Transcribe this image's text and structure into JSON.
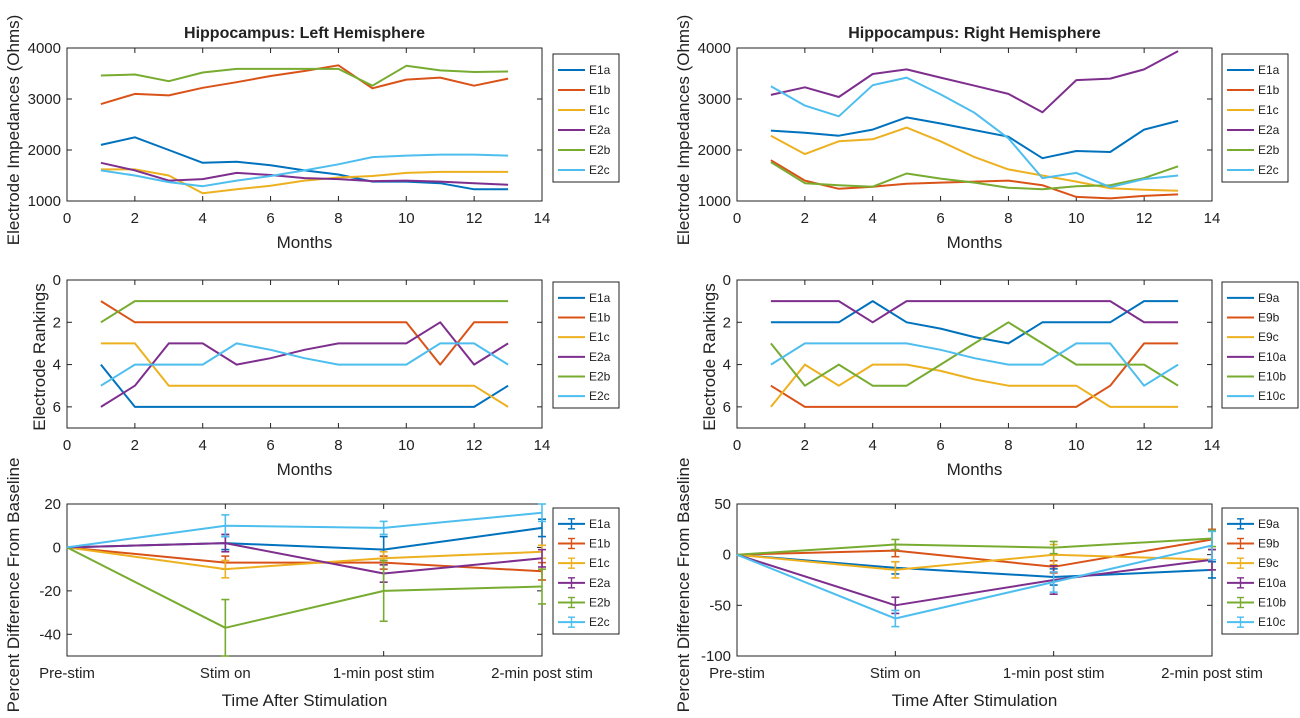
{
  "chart_data": [
    {
      "id": "imp_left",
      "type": "line",
      "title": "Hippocampus: Left Hemisphere",
      "xlabel": "Months",
      "ylabel": "Electrode Impedances (Ohms)",
      "xlim": [
        0,
        14
      ],
      "ylim": [
        1000,
        4000
      ],
      "xticks": [
        0,
        2,
        4,
        6,
        8,
        10,
        12,
        14
      ],
      "yticks": [
        1000,
        2000,
        3000,
        4000
      ],
      "x": [
        1,
        2,
        3,
        4,
        5,
        6,
        7,
        8,
        9,
        10,
        11,
        12,
        13
      ],
      "series": [
        {
          "name": "E1a",
          "color": "#0072bd",
          "values": [
            2100,
            2250,
            2000,
            1750,
            1770,
            1700,
            1600,
            1520,
            1380,
            1380,
            1350,
            1230,
            1230
          ]
        },
        {
          "name": "E1b",
          "color": "#d95319",
          "values": [
            2900,
            3100,
            3070,
            3220,
            3330,
            3450,
            3550,
            3660,
            3210,
            3380,
            3420,
            3260,
            3400
          ]
        },
        {
          "name": "E1c",
          "color": "#edb120",
          "values": [
            1620,
            1620,
            1500,
            1150,
            1230,
            1300,
            1400,
            1460,
            1490,
            1550,
            1570,
            1570,
            1570
          ]
        },
        {
          "name": "E2a",
          "color": "#7e2f8e",
          "values": [
            1750,
            1600,
            1400,
            1430,
            1550,
            1510,
            1450,
            1430,
            1390,
            1400,
            1380,
            1350,
            1320
          ]
        },
        {
          "name": "E2b",
          "color": "#77ac30",
          "values": [
            3460,
            3480,
            3350,
            3520,
            3590,
            3590,
            3590,
            3590,
            3260,
            3650,
            3560,
            3530,
            3540
          ]
        },
        {
          "name": "E2c",
          "color": "#4dbeee",
          "values": [
            1600,
            1500,
            1370,
            1290,
            1400,
            1490,
            1600,
            1720,
            1860,
            1890,
            1910,
            1910,
            1890
          ]
        }
      ]
    },
    {
      "id": "imp_right",
      "type": "line",
      "title": "Hippocampus: Right Hemisphere",
      "xlabel": "Months",
      "ylabel": "Electrode Impedances (Ohms)",
      "xlim": [
        0,
        14
      ],
      "ylim": [
        1000,
        4000
      ],
      "xticks": [
        0,
        2,
        4,
        6,
        8,
        10,
        12,
        14
      ],
      "yticks": [
        1000,
        2000,
        3000,
        4000
      ],
      "x": [
        1,
        2,
        3,
        4,
        5,
        6,
        7,
        8,
        9,
        10,
        11,
        12,
        13
      ],
      "series": [
        {
          "name": "E1a",
          "color": "#0072bd",
          "values": [
            2380,
            2340,
            2280,
            2400,
            2640,
            2520,
            2390,
            2260,
            1840,
            1980,
            1960,
            2400,
            2570
          ]
        },
        {
          "name": "E1b",
          "color": "#d95319",
          "values": [
            1800,
            1400,
            1240,
            1280,
            1340,
            1360,
            1380,
            1400,
            1310,
            1080,
            1050,
            1100,
            1130
          ]
        },
        {
          "name": "E1c",
          "color": "#edb120",
          "values": [
            2280,
            1920,
            2170,
            2210,
            2440,
            2170,
            1860,
            1620,
            1500,
            1380,
            1250,
            1220,
            1200
          ]
        },
        {
          "name": "E2a",
          "color": "#7e2f8e",
          "values": [
            3080,
            3230,
            3040,
            3490,
            3580,
            3420,
            3260,
            3100,
            2740,
            3370,
            3400,
            3580,
            3940
          ]
        },
        {
          "name": "E2b",
          "color": "#77ac30",
          "values": [
            1760,
            1350,
            1310,
            1280,
            1540,
            1440,
            1360,
            1260,
            1230,
            1290,
            1310,
            1450,
            1680
          ]
        },
        {
          "name": "E2c",
          "color": "#4dbeee",
          "values": [
            3250,
            2870,
            2660,
            3270,
            3420,
            3090,
            2730,
            2230,
            1450,
            1550,
            1270,
            1430,
            1500
          ]
        }
      ]
    },
    {
      "id": "rank_left",
      "type": "line",
      "title": "",
      "xlabel": "Months",
      "ylabel": "Electrode Rankings",
      "xlim": [
        0,
        14
      ],
      "ylim": [
        0,
        7
      ],
      "yreverse": true,
      "xticks": [
        0,
        2,
        4,
        6,
        8,
        10,
        12,
        14
      ],
      "yticks": [
        0,
        2,
        4,
        6
      ],
      "x": [
        1,
        2,
        3,
        4,
        5,
        6,
        7,
        8,
        9,
        10,
        11,
        12,
        13
      ],
      "series": [
        {
          "name": "E1a",
          "color": "#0072bd",
          "values": [
            4,
            6,
            6,
            6,
            6,
            6,
            6,
            6,
            6,
            6,
            6,
            6,
            5
          ]
        },
        {
          "name": "E1b",
          "color": "#d95319",
          "values": [
            1,
            2,
            2,
            2,
            2,
            2,
            2,
            2,
            2,
            2,
            4,
            2,
            2
          ]
        },
        {
          "name": "E1c",
          "color": "#edb120",
          "values": [
            3,
            3,
            5,
            5,
            5,
            5,
            5,
            5,
            5,
            5,
            5,
            5,
            6
          ]
        },
        {
          "name": "E2a",
          "color": "#7e2f8e",
          "values": [
            6,
            5,
            3,
            3,
            4,
            3.7,
            3.3,
            3,
            3,
            3,
            2,
            4,
            3
          ]
        },
        {
          "name": "E2b",
          "color": "#77ac30",
          "values": [
            2,
            1,
            1,
            1,
            1,
            1,
            1,
            1,
            1,
            1,
            1,
            1,
            1
          ]
        },
        {
          "name": "E2c",
          "color": "#4dbeee",
          "values": [
            5,
            4,
            4,
            4,
            3,
            3.3,
            3.7,
            4,
            4,
            4,
            3,
            3,
            4
          ]
        }
      ]
    },
    {
      "id": "rank_right",
      "type": "line",
      "title": "",
      "xlabel": "Months",
      "ylabel": "Electrode Rankings",
      "xlim": [
        0,
        14
      ],
      "ylim": [
        0,
        7
      ],
      "yreverse": true,
      "xticks": [
        0,
        2,
        4,
        6,
        8,
        10,
        12,
        14
      ],
      "yticks": [
        0,
        2,
        4,
        6
      ],
      "x": [
        1,
        2,
        3,
        4,
        5,
        6,
        7,
        8,
        9,
        10,
        11,
        12,
        13
      ],
      "series": [
        {
          "name": "E9a",
          "color": "#0072bd",
          "values": [
            2,
            2,
            2,
            1,
            2,
            2.3,
            2.7,
            3,
            2,
            2,
            2,
            1,
            1
          ]
        },
        {
          "name": "E9b",
          "color": "#d95319",
          "values": [
            5,
            6,
            6,
            6,
            6,
            6,
            6,
            6,
            6,
            6,
            5,
            3,
            3
          ]
        },
        {
          "name": "E9c",
          "color": "#edb120",
          "values": [
            6,
            4,
            5,
            4,
            4,
            4.3,
            4.7,
            5,
            5,
            5,
            6,
            6,
            6
          ]
        },
        {
          "name": "E10a",
          "color": "#7e2f8e",
          "values": [
            1,
            1,
            1,
            2,
            1,
            1,
            1,
            1,
            1,
            1,
            1,
            2,
            2
          ]
        },
        {
          "name": "E10b",
          "color": "#77ac30",
          "values": [
            3,
            5,
            4,
            5,
            5,
            4,
            3,
            2,
            3,
            4,
            4,
            4,
            5
          ]
        },
        {
          "name": "E10c",
          "color": "#4dbeee",
          "values": [
            4,
            3,
            3,
            3,
            3,
            3.3,
            3.7,
            4,
            4,
            3,
            3,
            5,
            4
          ]
        }
      ]
    },
    {
      "id": "pct_left",
      "type": "line",
      "title": "",
      "xlabel": "Time After Stimulation",
      "ylabel": "Percent Difference From Baseline",
      "xlim": [
        0,
        3
      ],
      "ylim": [
        -50,
        20
      ],
      "xticks": [
        0,
        1,
        2,
        3
      ],
      "xticklabels": [
        "Pre-stim",
        "Stim on",
        "1-min post stim",
        "2-min post stim"
      ],
      "yticks": [
        -40,
        -20,
        0,
        20
      ],
      "x": [
        0,
        1,
        2,
        3
      ],
      "series": [
        {
          "name": "E1a",
          "color": "#0072bd",
          "values": [
            0,
            2,
            -1,
            9
          ],
          "err": [
            0,
            3,
            6,
            4
          ]
        },
        {
          "name": "E1b",
          "color": "#d95319",
          "values": [
            0,
            -7,
            -7,
            -11
          ],
          "err": [
            0,
            3,
            3,
            4
          ]
        },
        {
          "name": "E1c",
          "color": "#edb120",
          "values": [
            0,
            -10,
            -5,
            -2
          ],
          "err": [
            0,
            4,
            3,
            3
          ]
        },
        {
          "name": "E2a",
          "color": "#7e2f8e",
          "values": [
            0,
            2,
            -12,
            -5
          ],
          "err": [
            0,
            4,
            4,
            4
          ]
        },
        {
          "name": "E2b",
          "color": "#77ac30",
          "values": [
            0,
            -37,
            -20,
            -18
          ],
          "err": [
            0,
            13,
            14,
            8
          ]
        },
        {
          "name": "E2c",
          "color": "#4dbeee",
          "values": [
            0,
            10,
            9,
            16
          ],
          "err": [
            0,
            5,
            3,
            4
          ]
        }
      ]
    },
    {
      "id": "pct_right",
      "type": "line",
      "title": "",
      "xlabel": "Time After Stimulation",
      "ylabel": "Percent Difference From Baseline",
      "xlim": [
        0,
        3
      ],
      "ylim": [
        -100,
        50
      ],
      "xticks": [
        0,
        1,
        2,
        3
      ],
      "xticklabels": [
        "Pre-stim",
        "Stim on",
        "1-min post stim",
        "2-min post stim"
      ],
      "yticks": [
        -100,
        -50,
        0,
        50
      ],
      "x": [
        0,
        1,
        2,
        3
      ],
      "series": [
        {
          "name": "E9a",
          "color": "#0072bd",
          "values": [
            0,
            -13,
            -22,
            -15
          ],
          "err": [
            0,
            6,
            8,
            8
          ]
        },
        {
          "name": "E9b",
          "color": "#d95319",
          "values": [
            0,
            4,
            -12,
            15
          ],
          "err": [
            0,
            6,
            6,
            10
          ]
        },
        {
          "name": "E9c",
          "color": "#edb120",
          "values": [
            0,
            -15,
            0,
            -5
          ],
          "err": [
            0,
            8,
            10,
            10
          ]
        },
        {
          "name": "E10a",
          "color": "#7e2f8e",
          "values": [
            0,
            -50,
            -25,
            -5
          ],
          "err": [
            0,
            8,
            14,
            10
          ]
        },
        {
          "name": "E10b",
          "color": "#77ac30",
          "values": [
            0,
            10,
            7,
            16
          ],
          "err": [
            0,
            5,
            6,
            8
          ]
        },
        {
          "name": "E10c",
          "color": "#4dbeee",
          "values": [
            0,
            -63,
            -27,
            9
          ],
          "err": [
            0,
            8,
            10,
            14
          ]
        }
      ]
    }
  ]
}
